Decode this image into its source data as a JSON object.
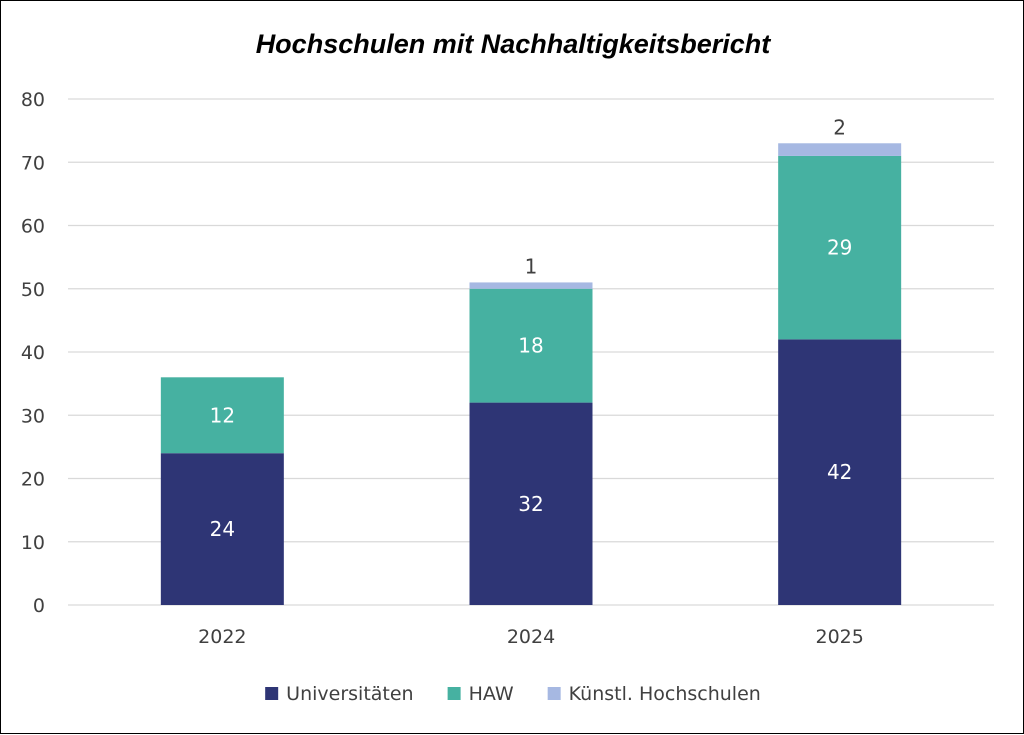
{
  "chart_data": {
    "type": "bar",
    "stacked": true,
    "title": "Hochschulen mit Nachhaltigkeitsbericht",
    "xlabel": "",
    "ylabel": "",
    "categories": [
      "2022",
      "2024",
      "2025"
    ],
    "series": [
      {
        "name": "Universitäten",
        "values": [
          24,
          32,
          42
        ],
        "color": "#2e3575",
        "label_color": "#ffffff"
      },
      {
        "name": "HAW",
        "values": [
          12,
          18,
          29
        ],
        "color": "#46b1a1",
        "label_color": "#ffffff"
      },
      {
        "name": "Künstl. Hochschulen",
        "values": [
          null,
          1,
          2
        ],
        "color": "#a6b8e2",
        "label_color": "#404040"
      }
    ],
    "ylim": [
      0,
      80
    ],
    "yticks": [
      "0",
      "10",
      "20",
      "30",
      "40",
      "50",
      "60",
      "70",
      "80"
    ],
    "grid": true,
    "legend_position": "bottom",
    "gridline_color": "#d9d9d9"
  }
}
